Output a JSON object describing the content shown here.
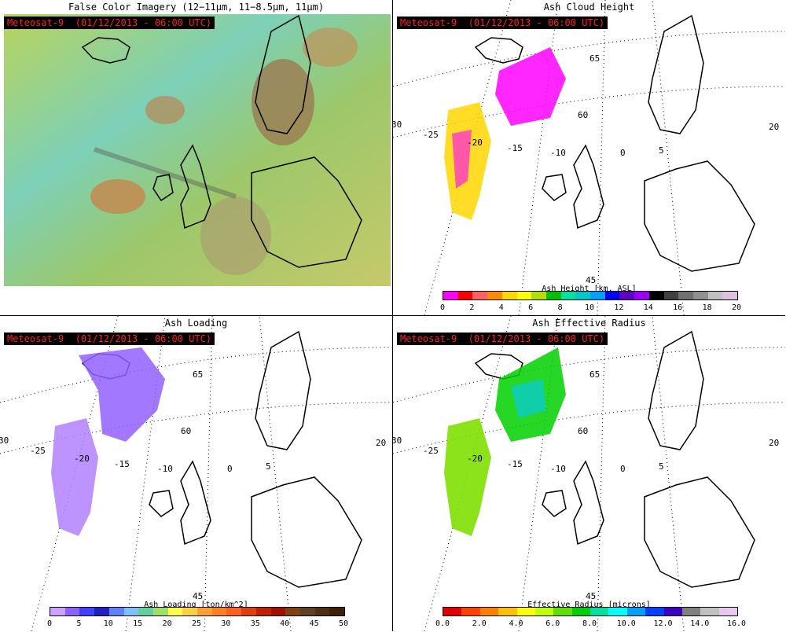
{
  "panels": {
    "false_color": {
      "title": "False Color Imagery (12−11µm, 11−8.5µm, 11µm)",
      "stamp": "Meteosat-9  (01/12/2013 - 06:00 UTC)"
    },
    "ash_height": {
      "title": "Ash Cloud Height",
      "stamp": "Meteosat-9  (01/12/2013 - 06:00 UTC)",
      "colorbar_title": "Ash Height [km, ASL]",
      "ticks": [
        "0",
        "2",
        "4",
        "6",
        "8",
        "10",
        "12",
        "14",
        "16",
        "18",
        "20"
      ],
      "colors": [
        "#ff00ff",
        "#ff0000",
        "#ff6060",
        "#ff8c00",
        "#ffd700",
        "#ffff00",
        "#b4e000",
        "#00c000",
        "#00e0a0",
        "#00c8c8",
        "#00a0ff",
        "#0000ff",
        "#6000c0",
        "#9900ff",
        "#000000",
        "#404040",
        "#707070",
        "#909090",
        "#c0c0c0",
        "#e0c0e0"
      ]
    },
    "ash_loading": {
      "title": "Ash Loading",
      "stamp": "Meteosat-9  (01/12/2013 - 06:00 UTC)",
      "colorbar_title": "Ash Loading [ton/km^2]",
      "ticks": [
        "0",
        "5",
        "10",
        "15",
        "20",
        "25",
        "30",
        "35",
        "40",
        "45",
        "50"
      ],
      "colors": [
        "#d0a0ff",
        "#9060ff",
        "#4040ff",
        "#2020c0",
        "#6080ff",
        "#80c0ff",
        "#60d0a0",
        "#a0e060",
        "#ffff40",
        "#ffd040",
        "#ffa030",
        "#ff8020",
        "#ff6020",
        "#e04010",
        "#c02000",
        "#a01000",
        "#804010",
        "#604020",
        "#503010",
        "#402000"
      ]
    },
    "effective_radius": {
      "title": "Ash Effective Radius",
      "stamp": "Meteosat-9  (01/12/2013 - 06:00 UTC)",
      "colorbar_title": "Effective Radius [microns]",
      "ticks": [
        "0.0",
        "2.0",
        "4.0",
        "6.0",
        "8.0",
        "10.0",
        "12.0",
        "14.0",
        "16.0"
      ],
      "colors": [
        "#e00000",
        "#ff4000",
        "#ff8000",
        "#ffc000",
        "#ffff00",
        "#c0ff00",
        "#60e000",
        "#00d000",
        "#00e0a0",
        "#00ffff",
        "#00a0ff",
        "#0040ff",
        "#4000c0",
        "#808080",
        "#c0c0c0",
        "#e8c8f0"
      ]
    }
  },
  "map_labels": {
    "lat": [
      "65",
      "60",
      "45"
    ],
    "lon": [
      "30",
      "-25",
      "-20",
      "-15",
      "-10",
      "0",
      "5",
      "20"
    ]
  },
  "colors": {
    "background": "#ffffff",
    "stamp_text": "#ff2020",
    "stamp_bg": "#000000"
  }
}
